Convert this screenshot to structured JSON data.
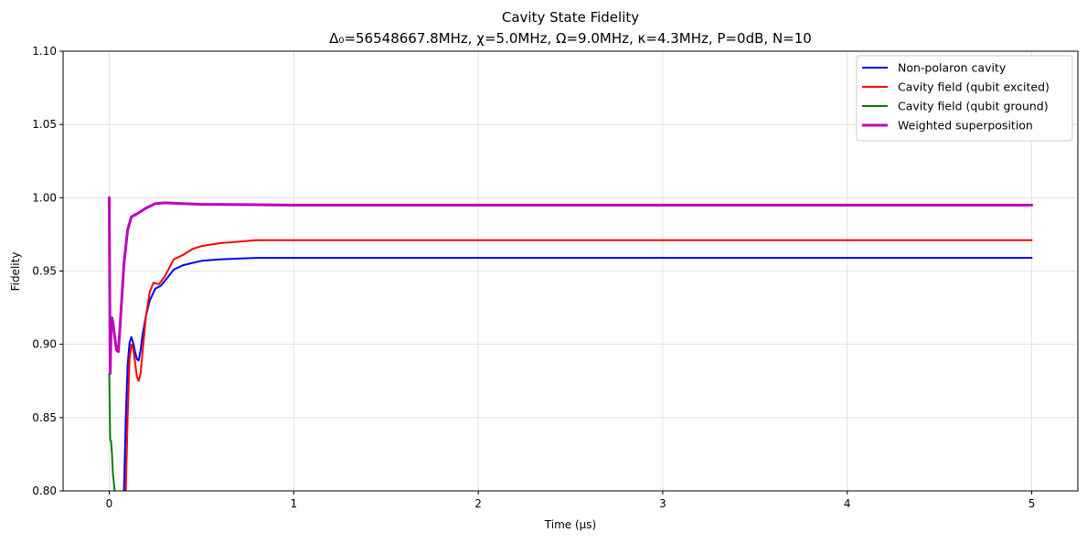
{
  "chart_data": {
    "type": "line",
    "title": "Cavity State Fidelity",
    "subtitle": "Δ₀=56548667.8MHz, χ=5.0MHz, Ω=9.0MHz, κ=4.3MHz, P=0dB, N=10",
    "xlabel": "Time (μs)",
    "ylabel": "Fidelity",
    "xlim": [
      -0.25,
      5.25
    ],
    "ylim": [
      0.8,
      1.1
    ],
    "x_ticks": [
      "0",
      "1",
      "2",
      "3",
      "4",
      "5"
    ],
    "y_ticks": [
      "0.80",
      "0.85",
      "0.90",
      "0.95",
      "1.00",
      "1.05",
      "1.10"
    ],
    "grid": true,
    "legend_position": "top-right",
    "series": [
      {
        "name": "Non-polaron cavity",
        "color": "#0000ff",
        "line_width": 2,
        "x": [
          0.08,
          0.09,
          0.1,
          0.11,
          0.12,
          0.13,
          0.14,
          0.15,
          0.16,
          0.17,
          0.18,
          0.2,
          0.22,
          0.25,
          0.28,
          0.3,
          0.35,
          0.4,
          0.5,
          0.6,
          0.8,
          1.0,
          1.5,
          2.0,
          3.0,
          4.0,
          5.0
        ],
        "values": [
          0.8,
          0.85,
          0.886,
          0.901,
          0.905,
          0.901,
          0.895,
          0.89,
          0.889,
          0.896,
          0.906,
          0.92,
          0.93,
          0.938,
          0.94,
          0.943,
          0.951,
          0.954,
          0.957,
          0.958,
          0.959,
          0.959,
          0.959,
          0.959,
          0.959,
          0.959,
          0.959
        ]
      },
      {
        "name": "Cavity field (qubit excited)",
        "color": "#ff0000",
        "line_width": 2,
        "x": [
          0.09,
          0.1,
          0.11,
          0.12,
          0.13,
          0.14,
          0.15,
          0.16,
          0.17,
          0.18,
          0.2,
          0.22,
          0.24,
          0.27,
          0.3,
          0.35,
          0.4,
          0.45,
          0.5,
          0.6,
          0.8,
          1.0,
          1.5,
          2.0,
          3.0,
          4.0,
          5.0
        ],
        "values": [
          0.8,
          0.85,
          0.89,
          0.9,
          0.897,
          0.888,
          0.878,
          0.875,
          0.88,
          0.894,
          0.92,
          0.936,
          0.942,
          0.941,
          0.946,
          0.958,
          0.961,
          0.965,
          0.967,
          0.969,
          0.971,
          0.971,
          0.971,
          0.971,
          0.971,
          0.971,
          0.971
        ]
      },
      {
        "name": "Cavity field (qubit ground)",
        "color": "#008000",
        "line_width": 2,
        "x": [
          0.0,
          0.005,
          0.01,
          0.015,
          0.02,
          0.03
        ],
        "values": [
          0.88,
          0.835,
          0.834,
          0.825,
          0.812,
          0.8
        ]
      },
      {
        "name": "Weighted superposition",
        "color": "#bf00bf",
        "line_width": 3,
        "x": [
          0.0,
          0.005,
          0.01,
          0.015,
          0.02,
          0.03,
          0.04,
          0.05,
          0.06,
          0.08,
          0.1,
          0.12,
          0.15,
          0.2,
          0.25,
          0.3,
          0.4,
          0.5,
          1.0,
          2.0,
          3.0,
          4.0,
          5.0
        ],
        "values": [
          1.0,
          0.88,
          0.91,
          0.918,
          0.915,
          0.905,
          0.896,
          0.895,
          0.915,
          0.955,
          0.978,
          0.987,
          0.989,
          0.993,
          0.996,
          0.9965,
          0.996,
          0.9955,
          0.995,
          0.995,
          0.995,
          0.995,
          0.995
        ]
      }
    ]
  }
}
